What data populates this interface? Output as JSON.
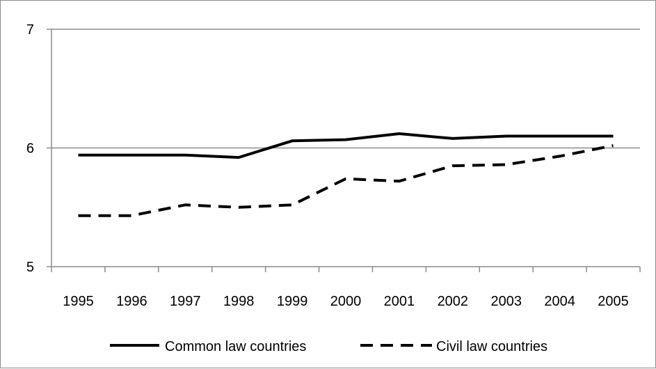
{
  "chart_data": {
    "type": "line",
    "title": "",
    "xlabel": "",
    "ylabel": "",
    "categories": [
      "1995",
      "1996",
      "1997",
      "1998",
      "1999",
      "2000",
      "2001",
      "2002",
      "2003",
      "2004",
      "2005"
    ],
    "ylim": [
      5,
      7
    ],
    "yticks": [
      "5",
      "6",
      "7"
    ],
    "grid": "horizontal major gridlines",
    "legend_position": "bottom",
    "series": [
      {
        "name": "Common law countries",
        "style": "solid",
        "color": "#000000",
        "values": [
          5.94,
          5.94,
          5.94,
          5.92,
          6.06,
          6.07,
          6.12,
          6.08,
          6.1,
          6.1,
          6.1
        ]
      },
      {
        "name": "Civil law countries",
        "style": "dashed",
        "color": "#000000",
        "values": [
          5.43,
          5.43,
          5.52,
          5.5,
          5.52,
          5.74,
          5.72,
          5.85,
          5.86,
          5.93,
          6.02
        ]
      }
    ]
  },
  "colors": {
    "gridline": "#8c8c8c",
    "axis": "#8c8c8c",
    "line": "#000000"
  }
}
